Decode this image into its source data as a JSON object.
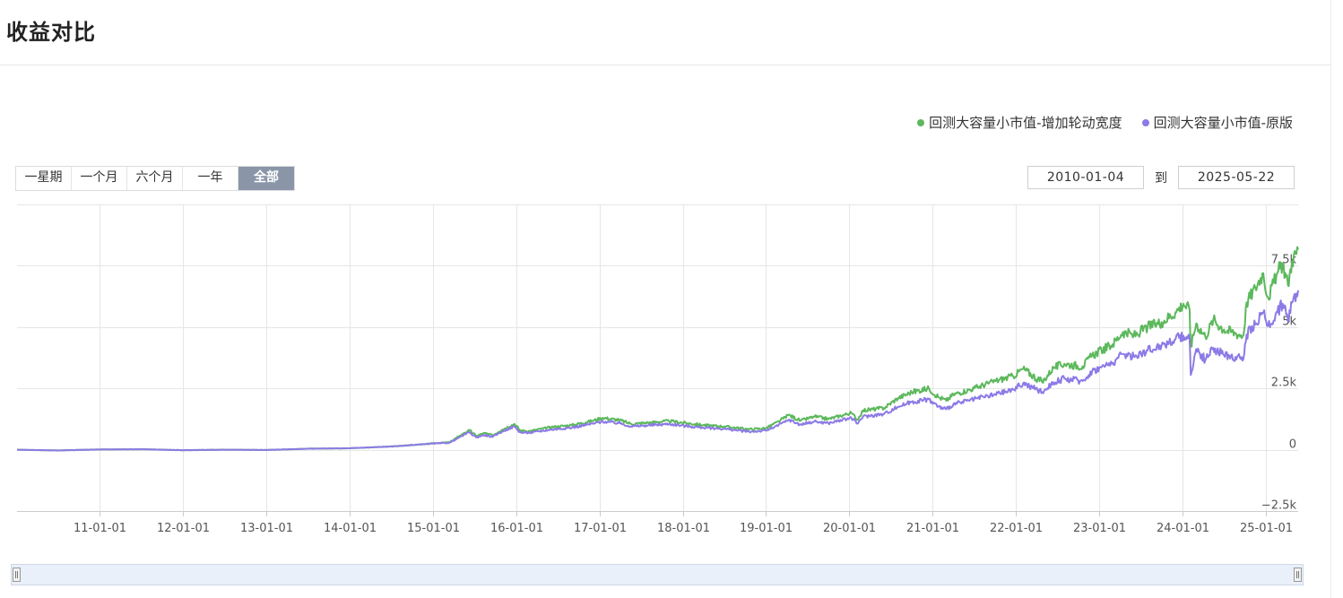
{
  "page": {
    "title": "收益对比"
  },
  "legend": [
    {
      "label": "回测大容量小市值-增加轮动宽度",
      "color": "#5cb85c"
    },
    {
      "label": "回测大容量小市值-原版",
      "color": "#8c7ae6"
    }
  ],
  "range_selector": {
    "buttons": [
      "一星期",
      "一个月",
      "六个月",
      "一年",
      "全部"
    ],
    "active_index": 4
  },
  "date_range": {
    "from": "2010-01-04",
    "separator": "到",
    "to": "2025-05-22"
  },
  "chart_data": {
    "type": "line",
    "title": "收益对比",
    "x_axis": {
      "type": "date",
      "range": [
        "2010-01-04",
        "2025-05-22"
      ],
      "tick_labels": [
        "11-01-01",
        "12-01-01",
        "13-01-01",
        "14-01-01",
        "15-01-01",
        "16-01-01",
        "17-01-01",
        "18-01-01",
        "19-01-01",
        "20-01-01",
        "21-01-01",
        "22-01-01",
        "23-01-01",
        "24-01-01",
        "25-01-01"
      ]
    },
    "y_axis": {
      "ylim": [
        -2500,
        10000
      ],
      "ticks": [
        -2500,
        0,
        2500,
        5000,
        7500
      ],
      "tick_labels": [
        "−2.5k",
        "0",
        "2.5k",
        "5k",
        "7.5k"
      ]
    },
    "grid": true,
    "legend_position": "top-right",
    "series": [
      {
        "name": "回测大容量小市值-增加轮动宽度",
        "color": "#5cb85c",
        "points": [
          [
            "2010-01-04",
            0
          ],
          [
            "2010-07-01",
            -30
          ],
          [
            "2011-01-01",
            10
          ],
          [
            "2011-07-01",
            20
          ],
          [
            "2012-01-01",
            -20
          ],
          [
            "2012-07-01",
            0
          ],
          [
            "2013-01-01",
            -10
          ],
          [
            "2013-07-01",
            40
          ],
          [
            "2014-01-01",
            60
          ],
          [
            "2014-07-01",
            130
          ],
          [
            "2014-12-01",
            230
          ],
          [
            "2015-01-01",
            260
          ],
          [
            "2015-03-15",
            300
          ],
          [
            "2015-05-01",
            580
          ],
          [
            "2015-06-10",
            800
          ],
          [
            "2015-07-10",
            560
          ],
          [
            "2015-08-15",
            680
          ],
          [
            "2015-09-20",
            580
          ],
          [
            "2015-11-01",
            820
          ],
          [
            "2015-12-25",
            1050
          ],
          [
            "2016-01-20",
            780
          ],
          [
            "2016-03-01",
            760
          ],
          [
            "2016-06-01",
            920
          ],
          [
            "2016-09-01",
            1000
          ],
          [
            "2016-12-01",
            1180
          ],
          [
            "2017-01-15",
            1300
          ],
          [
            "2017-04-01",
            1200
          ],
          [
            "2017-05-20",
            1050
          ],
          [
            "2017-08-01",
            1100
          ],
          [
            "2017-11-01",
            1170
          ],
          [
            "2018-01-20",
            1080
          ],
          [
            "2018-04-01",
            1000
          ],
          [
            "2018-07-01",
            950
          ],
          [
            "2018-10-20",
            830
          ],
          [
            "2019-01-01",
            880
          ],
          [
            "2019-02-25",
            1150
          ],
          [
            "2019-04-10",
            1420
          ],
          [
            "2019-06-01",
            1180
          ],
          [
            "2019-08-01",
            1350
          ],
          [
            "2019-10-01",
            1250
          ],
          [
            "2020-01-10",
            1500
          ],
          [
            "2020-02-05",
            1220
          ],
          [
            "2020-03-01",
            1600
          ],
          [
            "2020-06-01",
            1700
          ],
          [
            "2020-08-01",
            2100
          ],
          [
            "2020-10-01",
            2350
          ],
          [
            "2020-12-15",
            2500
          ],
          [
            "2021-01-25",
            2150
          ],
          [
            "2021-03-01",
            2000
          ],
          [
            "2021-04-01",
            2250
          ],
          [
            "2021-07-01",
            2500
          ],
          [
            "2021-10-01",
            2800
          ],
          [
            "2021-12-20",
            3000
          ],
          [
            "2022-02-01",
            3300
          ],
          [
            "2022-04-26",
            2750
          ],
          [
            "2022-06-15",
            3350
          ],
          [
            "2022-08-01",
            3500
          ],
          [
            "2022-10-20",
            3400
          ],
          [
            "2022-12-01",
            3850
          ],
          [
            "2023-03-01",
            4300
          ],
          [
            "2023-04-15",
            4800
          ],
          [
            "2023-06-01",
            4650
          ],
          [
            "2023-08-01",
            5000
          ],
          [
            "2023-10-01",
            5200
          ],
          [
            "2023-12-01",
            5600
          ],
          [
            "2024-01-05",
            5950
          ],
          [
            "2024-02-01",
            5700
          ],
          [
            "2024-02-06",
            4200
          ],
          [
            "2024-03-01",
            5150
          ],
          [
            "2024-04-10",
            4600
          ],
          [
            "2024-05-15",
            5300
          ],
          [
            "2024-07-01",
            4900
          ],
          [
            "2024-08-20",
            4750
          ],
          [
            "2024-09-24",
            4650
          ],
          [
            "2024-10-08",
            6000
          ],
          [
            "2024-11-15",
            6600
          ],
          [
            "2024-12-20",
            7200
          ],
          [
            "2025-01-10",
            6200
          ],
          [
            "2025-02-20",
            7200
          ],
          [
            "2025-03-15",
            7600
          ],
          [
            "2025-04-07",
            6700
          ],
          [
            "2025-04-25",
            7700
          ],
          [
            "2025-05-22",
            8150
          ]
        ]
      },
      {
        "name": "回测大容量小市值-原版",
        "color": "#8c7ae6",
        "points": [
          [
            "2010-01-04",
            0
          ],
          [
            "2010-07-01",
            -30
          ],
          [
            "2011-01-01",
            10
          ],
          [
            "2011-07-01",
            20
          ],
          [
            "2012-01-01",
            -20
          ],
          [
            "2012-07-01",
            0
          ],
          [
            "2013-01-01",
            -10
          ],
          [
            "2013-07-01",
            40
          ],
          [
            "2014-01-01",
            60
          ],
          [
            "2014-07-01",
            130
          ],
          [
            "2014-12-01",
            230
          ],
          [
            "2015-01-01",
            250
          ],
          [
            "2015-03-15",
            280
          ],
          [
            "2015-05-01",
            520
          ],
          [
            "2015-06-10",
            720
          ],
          [
            "2015-07-10",
            500
          ],
          [
            "2015-08-15",
            600
          ],
          [
            "2015-09-20",
            520
          ],
          [
            "2015-11-01",
            740
          ],
          [
            "2015-12-25",
            950
          ],
          [
            "2016-01-20",
            700
          ],
          [
            "2016-03-01",
            690
          ],
          [
            "2016-06-01",
            820
          ],
          [
            "2016-09-01",
            900
          ],
          [
            "2016-12-01",
            1060
          ],
          [
            "2017-01-15",
            1150
          ],
          [
            "2017-04-01",
            1080
          ],
          [
            "2017-05-20",
            950
          ],
          [
            "2017-08-01",
            990
          ],
          [
            "2017-11-01",
            1050
          ],
          [
            "2018-01-20",
            960
          ],
          [
            "2018-04-01",
            900
          ],
          [
            "2018-07-01",
            850
          ],
          [
            "2018-10-20",
            730
          ],
          [
            "2019-01-01",
            780
          ],
          [
            "2019-02-25",
            1000
          ],
          [
            "2019-04-10",
            1220
          ],
          [
            "2019-06-01",
            1020
          ],
          [
            "2019-08-01",
            1150
          ],
          [
            "2019-10-01",
            1080
          ],
          [
            "2020-01-10",
            1300
          ],
          [
            "2020-02-05",
            1060
          ],
          [
            "2020-03-01",
            1350
          ],
          [
            "2020-06-01",
            1450
          ],
          [
            "2020-08-01",
            1750
          ],
          [
            "2020-10-01",
            1950
          ],
          [
            "2020-12-15",
            2050
          ],
          [
            "2021-01-25",
            1750
          ],
          [
            "2021-03-01",
            1650
          ],
          [
            "2021-04-01",
            1850
          ],
          [
            "2021-07-01",
            2050
          ],
          [
            "2021-10-01",
            2250
          ],
          [
            "2021-12-20",
            2450
          ],
          [
            "2022-02-01",
            2700
          ],
          [
            "2022-04-26",
            2350
          ],
          [
            "2022-06-15",
            2750
          ],
          [
            "2022-08-01",
            2900
          ],
          [
            "2022-10-20",
            2800
          ],
          [
            "2022-12-01",
            3200
          ],
          [
            "2023-03-01",
            3550
          ],
          [
            "2023-04-15",
            3900
          ],
          [
            "2023-06-01",
            3800
          ],
          [
            "2023-08-01",
            4050
          ],
          [
            "2023-10-01",
            4250
          ],
          [
            "2023-12-01",
            4500
          ],
          [
            "2024-01-05",
            4650
          ],
          [
            "2024-02-01",
            4550
          ],
          [
            "2024-02-06",
            3050
          ],
          [
            "2024-03-01",
            4100
          ],
          [
            "2024-04-10",
            3650
          ],
          [
            "2024-05-15",
            4150
          ],
          [
            "2024-07-01",
            3850
          ],
          [
            "2024-08-20",
            3780
          ],
          [
            "2024-09-24",
            3700
          ],
          [
            "2024-10-08",
            4700
          ],
          [
            "2024-11-15",
            5100
          ],
          [
            "2024-12-20",
            5600
          ],
          [
            "2025-01-10",
            5050
          ],
          [
            "2025-02-20",
            5600
          ],
          [
            "2025-03-15",
            5950
          ],
          [
            "2025-04-07",
            5300
          ],
          [
            "2025-04-25",
            6000
          ],
          [
            "2025-05-22",
            6500
          ]
        ]
      }
    ]
  }
}
